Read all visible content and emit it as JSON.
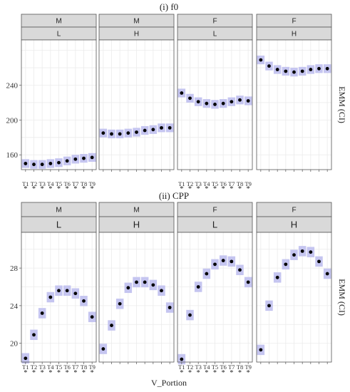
{
  "chart_data": [
    {
      "type": "scatter",
      "title": "(i) f0",
      "ylabel": "EMM (CI)",
      "xlabel": "",
      "ylim": [
        143,
        292
      ],
      "yticks": [
        160,
        200,
        240
      ],
      "categories": [
        "T1",
        "T2",
        "T3",
        "T4",
        "T5",
        "T6",
        "T7",
        "T8",
        "T9"
      ],
      "significance": [
        "*",
        "*",
        "*",
        "*",
        "*",
        "*",
        "*",
        "*",
        "*"
      ],
      "panels": [
        {
          "top": "M",
          "bottom": "L",
          "values": [
            150,
            149,
            149,
            150,
            151,
            153,
            155,
            156,
            157
          ],
          "ci": 5
        },
        {
          "top": "M",
          "bottom": "H",
          "values": [
            185,
            184,
            184,
            185,
            186,
            188,
            189,
            191,
            191
          ],
          "ci": 5
        },
        {
          "top": "F",
          "bottom": "L",
          "values": [
            231,
            225,
            221,
            219,
            218,
            219,
            221,
            223,
            222
          ],
          "ci": 5
        },
        {
          "top": "F",
          "bottom": "H",
          "values": [
            269,
            262,
            258,
            256,
            255,
            256,
            258,
            259,
            259
          ],
          "ci": 5
        }
      ]
    },
    {
      "type": "scatter",
      "title": "(ii) CPP",
      "ylabel": "EMM (CI)",
      "xlabel": "V_Portion",
      "ylim": [
        18,
        31.8
      ],
      "yticks": [
        20,
        24,
        28
      ],
      "categories": [
        "T1",
        "T2",
        "T3",
        "T4",
        "T5",
        "T6",
        "T7",
        "T8",
        "T9"
      ],
      "significance": [
        "*",
        "*",
        "*",
        "*",
        "*",
        "*",
        "*",
        "*",
        "*"
      ],
      "panels": [
        {
          "top": "M",
          "bottom": "L",
          "values": [
            18.4,
            20.9,
            23.2,
            24.9,
            25.6,
            25.6,
            25.3,
            24.5,
            22.8
          ],
          "ci": 0.55
        },
        {
          "top": "M",
          "bottom": "H",
          "values": [
            19.4,
            21.9,
            24.2,
            25.9,
            26.5,
            26.5,
            26.2,
            25.6,
            23.8
          ],
          "ci": 0.55
        },
        {
          "top": "F",
          "bottom": "L",
          "values": [
            18.3,
            23.0,
            26.0,
            27.4,
            28.4,
            28.8,
            28.7,
            27.8,
            26.5
          ],
          "ci": 0.55
        },
        {
          "top": "F",
          "bottom": "H",
          "values": [
            19.3,
            24.0,
            27.0,
            28.4,
            29.4,
            29.8,
            29.7,
            28.7,
            27.4
          ],
          "ci": 0.55
        }
      ]
    }
  ],
  "colors": {
    "ci_band": "#c5c5f0",
    "point": "#000000",
    "strip_fill": "#d9d9d9",
    "strip_stroke": "#555555",
    "grid": "#ebebeb",
    "panel_border": "#555555"
  }
}
